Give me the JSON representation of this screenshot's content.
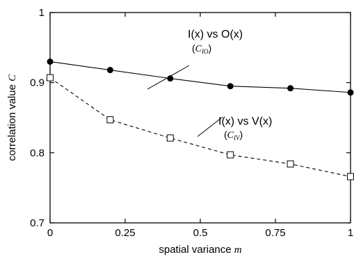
{
  "chart_data": {
    "type": "line",
    "xlabel": {
      "text": "spatial variance",
      "symbol": "m"
    },
    "ylabel": {
      "text": "correlation value",
      "symbol": "C"
    },
    "xlim": [
      0,
      1
    ],
    "ylim": [
      0.7,
      1.0
    ],
    "xticks": [
      {
        "value": 0,
        "label": "0"
      },
      {
        "value": 0.25,
        "label": "0.25"
      },
      {
        "value": 0.5,
        "label": "0.5"
      },
      {
        "value": 0.75,
        "label": "0.75"
      },
      {
        "value": 1,
        "label": "1"
      }
    ],
    "yticks": [
      {
        "value": 0.7,
        "label": "0.7"
      },
      {
        "value": 0.8,
        "label": "0.8"
      },
      {
        "value": 0.9,
        "label": "0.9"
      },
      {
        "value": 1.0,
        "label": "1"
      }
    ],
    "grid": false,
    "series": [
      {
        "name": "I(x) vs O(x)",
        "symbol_base": "C",
        "symbol_sub": "IO",
        "marker": "filled-circle",
        "line": "solid",
        "x": [
          0,
          0.2,
          0.4,
          0.6,
          0.8,
          1.0
        ],
        "y": [
          0.93,
          0.918,
          0.906,
          0.895,
          0.892,
          0.886
        ]
      },
      {
        "name": "I(x) vs V(x)",
        "symbol_base": "C",
        "symbol_sub": "IV",
        "marker": "open-square",
        "line": "dashed",
        "x": [
          0,
          0.2,
          0.4,
          0.6,
          0.8,
          1.0
        ],
        "y": [
          0.907,
          0.847,
          0.821,
          0.797,
          0.784,
          0.766
        ]
      }
    ]
  }
}
